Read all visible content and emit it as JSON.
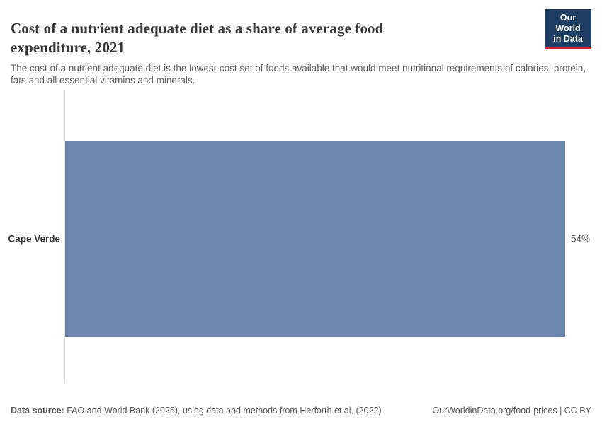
{
  "header": {
    "title": "Cost of a nutrient adequate diet as a share of average food expenditure, 2021",
    "subtitle": "The cost of a nutrient adequate diet is the lowest-cost set of foods available that would meet nutritional requirements of calories, protein, fats and all essential vitamins and minerals.",
    "logo": {
      "line1": "Our World",
      "line2": "in Data"
    }
  },
  "chart_data": {
    "type": "bar",
    "orientation": "horizontal",
    "title": "Cost of a nutrient adequate diet as a share of average food expenditure, 2021",
    "categories": [
      "Cape Verde"
    ],
    "values": [
      54
    ],
    "value_labels": [
      "54%"
    ],
    "unit": "%",
    "axis_max": 54,
    "grid": false,
    "legend": "none",
    "bar_color": "#6e86ad"
  },
  "footer": {
    "source_label": "Data source:",
    "source_text": " FAO and World Bank (2025), using data and methods from Herforth et al. (2022)",
    "rights_text": "OurWorldinData.org/food-prices | CC BY"
  },
  "colors": {
    "title_text": "#383636",
    "subtitle_text": "#616161",
    "bar": "#6e86ad",
    "axis_line": "#dedede",
    "logo_bg": "#1d3d63",
    "logo_underline": "#cf242a",
    "footer_text": "#5b5b5b"
  }
}
